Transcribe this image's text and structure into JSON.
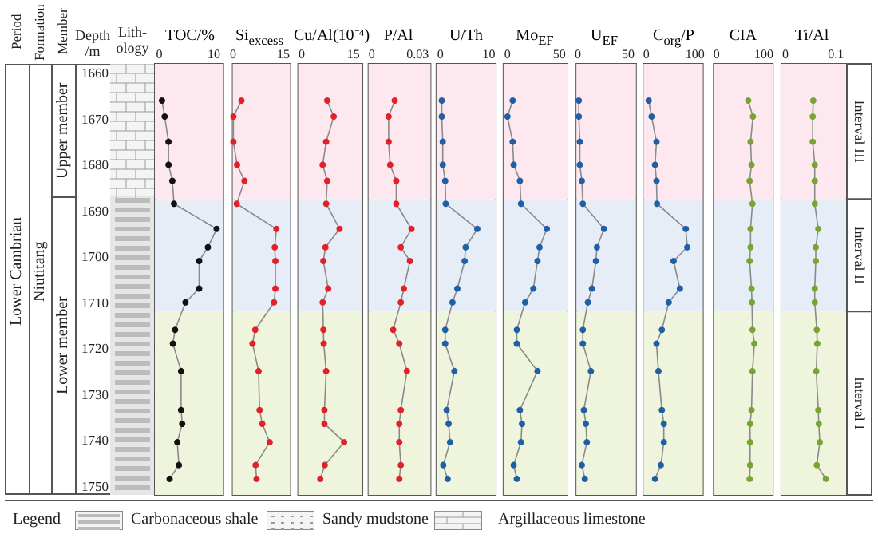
{
  "chart_data": [
    {
      "type": "line",
      "title": "TOC/%",
      "ylabel": "Depth /m",
      "marker": "circle",
      "line_style": "solid",
      "xlim": [
        -0.8,
        11.7
      ],
      "xticks": [
        0,
        10
      ],
      "ylim": [
        1752,
        1658
      ],
      "yticks": [
        1660,
        1670,
        1680,
        1690,
        1700,
        1710,
        1720,
        1730,
        1740,
        1750
      ],
      "series": [
        {
          "color": "#111111",
          "x": [
            0.5,
            1.0,
            1.7,
            1.7,
            2.4,
            2.7,
            10.5,
            8.9,
            7.3,
            7.3,
            4.8,
            2.9,
            2.5,
            4.0,
            4.0,
            4.2,
            3.3,
            3.6,
            1.9
          ],
          "values": [
            1666,
            1669.5,
            1675,
            1680,
            1683.5,
            1688.5,
            1694,
            1698,
            1701,
            1707,
            1710,
            1716,
            1719,
            1725,
            1733.5,
            1736.5,
            1740.5,
            1745.5,
            1748.5
          ]
        }
      ],
      "bands": [
        {
          "axis": "y",
          "from": 1658,
          "to": 1687.5,
          "color": "#fce8ee"
        },
        {
          "axis": "y",
          "from": 1687.5,
          "to": 1712,
          "color": "#e6edf7"
        },
        {
          "axis": "y",
          "from": 1712,
          "to": 1752,
          "color": "#eff4dc"
        }
      ],
      "annotations": [
        "Period",
        "Formation",
        "Member",
        "Lith-ology",
        "Lower Cambrian",
        "Niutitang",
        "Upper member",
        "Lower member",
        "Legend",
        "Carbonaceous shale",
        "Sandy mudstone",
        "Argillaceous limestone"
      ]
    },
    {
      "type": "line",
      "title": "Si$_{excess}$",
      "tick_labels": "x",
      "marker": "circle",
      "line_style": "solid",
      "xlim": [
        -0.1,
        17
      ],
      "xticks": [
        0,
        15
      ],
      "ylim": [
        1752,
        1658
      ],
      "series": [
        {
          "color": "#e3202a",
          "x": [
            2.5,
            0.1,
            0.1,
            1.2,
            3.4,
            1.1,
            12.9,
            12.4,
            12.6,
            12.6,
            12.2,
            6.6,
            5.8,
            7.6,
            7.9,
            8.7,
            10.9,
            6.7,
            7.0
          ],
          "values": [
            1666,
            1669.5,
            1675,
            1680,
            1683.5,
            1688.5,
            1694,
            1698,
            1701,
            1707,
            1710,
            1716,
            1719,
            1725,
            1733.5,
            1736.5,
            1740.5,
            1745.5,
            1748.5
          ]
        }
      ],
      "bands": [
        {
          "axis": "y",
          "from": 1658,
          "to": 1687.5,
          "color": "#fce8ee"
        },
        {
          "axis": "y",
          "from": 1687.5,
          "to": 1712,
          "color": "#e6edf7"
        },
        {
          "axis": "y",
          "from": 1712,
          "to": 1752,
          "color": "#eff4dc"
        }
      ]
    },
    {
      "type": "line",
      "title": "Cu/Al(10⁻⁴)",
      "tick_labels": "x",
      "marker": "circle",
      "line_style": "solid",
      "xlim": [
        -1,
        17.6
      ],
      "xticks": [
        0,
        15
      ],
      "ylim": [
        1752,
        1658
      ],
      "series": [
        {
          "color": "#e3202a",
          "x": [
            7.4,
            9.3,
            7.1,
            6.1,
            7.4,
            7.1,
            11.0,
            6.9,
            6.3,
            7.7,
            6.1,
            6.3,
            6.4,
            7.1,
            6.6,
            6.6,
            12.3,
            6.7,
            5.4
          ],
          "values": [
            1666,
            1669.5,
            1675,
            1680,
            1683.5,
            1688.5,
            1694,
            1698,
            1701,
            1707,
            1710,
            1716,
            1719,
            1725,
            1733.5,
            1736.5,
            1740.5,
            1745.5,
            1748.5
          ]
        }
      ],
      "bands": [
        {
          "axis": "y",
          "from": 1658,
          "to": 1687.5,
          "color": "#fce8ee"
        },
        {
          "axis": "y",
          "from": 1687.5,
          "to": 1712,
          "color": "#e6edf7"
        },
        {
          "axis": "y",
          "from": 1712,
          "to": 1752,
          "color": "#eff4dc"
        }
      ]
    },
    {
      "type": "line",
      "title": "P/Al",
      "tick_labels": "x",
      "marker": "circle",
      "line_style": "solid",
      "xlim": [
        -0.0022,
        0.0385
      ],
      "xticks": [
        0,
        0.03
      ],
      "ylim": [
        1752,
        1658
      ],
      "series": [
        {
          "color": "#e3202a",
          "x": [
            0.015,
            0.011,
            0.011,
            0.012,
            0.016,
            0.016,
            0.026,
            0.019,
            0.025,
            0.021,
            0.019,
            0.014,
            0.018,
            0.023,
            0.019,
            0.018,
            0.018,
            0.019,
            0.018
          ],
          "values": [
            1666,
            1669.5,
            1675,
            1680,
            1683.5,
            1688.5,
            1694,
            1698,
            1701,
            1707,
            1710,
            1716,
            1719,
            1725,
            1733.5,
            1736.5,
            1740.5,
            1745.5,
            1748.5
          ]
        }
      ],
      "bands": [
        {
          "axis": "y",
          "from": 1658,
          "to": 1687.5,
          "color": "#fce8ee"
        },
        {
          "axis": "y",
          "from": 1687.5,
          "to": 1712,
          "color": "#e6edf7"
        },
        {
          "axis": "y",
          "from": 1712,
          "to": 1752,
          "color": "#eff4dc"
        }
      ]
    },
    {
      "type": "line",
      "title": "U/Th",
      "tick_labels": "x",
      "marker": "circle",
      "line_style": "solid",
      "xlim": [
        -0.8,
        11.4
      ],
      "xticks": [
        0,
        10
      ],
      "ylim": [
        1752,
        1658
      ],
      "series": [
        {
          "color": "#1f5fa8",
          "x": [
            0.3,
            0.3,
            0.5,
            0.5,
            1.0,
            1.1,
            7.6,
            5.2,
            5.0,
            3.5,
            2.5,
            1.0,
            1.0,
            2.9,
            1.3,
            1.7,
            2.0,
            0.6,
            1.5
          ],
          "values": [
            1666,
            1669.5,
            1675,
            1680,
            1683.5,
            1688.5,
            1694,
            1698,
            1701,
            1707,
            1710,
            1716,
            1719,
            1725,
            1733.5,
            1736.5,
            1740.5,
            1745.5,
            1748.5
          ]
        }
      ],
      "bands": [
        {
          "axis": "y",
          "from": 1658,
          "to": 1687.5,
          "color": "#fce8ee"
        },
        {
          "axis": "y",
          "from": 1687.5,
          "to": 1712,
          "color": "#e6edf7"
        },
        {
          "axis": "y",
          "from": 1712,
          "to": 1752,
          "color": "#eff4dc"
        }
      ]
    },
    {
      "type": "line",
      "title": "Mo$_{EF}$",
      "tick_labels": "x",
      "marker": "circle",
      "line_style": "solid",
      "xlim": [
        -3.8,
        58
      ],
      "xticks": [
        0,
        50
      ],
      "ylim": [
        1752,
        1658
      ],
      "series": [
        {
          "color": "#1f5fa8",
          "x": [
            5,
            0,
            5,
            6,
            12,
            13,
            38,
            31,
            29,
            25,
            17,
            9,
            9,
            29,
            12,
            14,
            13,
            6,
            9
          ],
          "values": [
            1666,
            1669.5,
            1675,
            1680,
            1683.5,
            1688.5,
            1694,
            1698,
            1701,
            1707,
            1710,
            1716,
            1719,
            1725,
            1733.5,
            1736.5,
            1740.5,
            1745.5,
            1748.5
          ]
        }
      ],
      "bands": [
        {
          "axis": "y",
          "from": 1658,
          "to": 1687.5,
          "color": "#fce8ee"
        },
        {
          "axis": "y",
          "from": 1687.5,
          "to": 1712,
          "color": "#e6edf7"
        },
        {
          "axis": "y",
          "from": 1712,
          "to": 1752,
          "color": "#eff4dc"
        }
      ]
    },
    {
      "type": "line",
      "title": "U$_{EF}$",
      "tick_labels": "x",
      "marker": "circle",
      "line_style": "solid",
      "xlim": [
        -1.4,
        57.7
      ],
      "xticks": [
        0,
        50
      ],
      "ylim": [
        1752,
        1658
      ],
      "series": [
        {
          "color": "#1f5fa8",
          "x": [
            1,
            1,
            2,
            2,
            4,
            5,
            26,
            19,
            18,
            14,
            10,
            5,
            5,
            13,
            6,
            8,
            9,
            4,
            7
          ],
          "values": [
            1666,
            1669.5,
            1675,
            1680,
            1683.5,
            1688.5,
            1694,
            1698,
            1701,
            1707,
            1710,
            1716,
            1719,
            1725,
            1733.5,
            1736.5,
            1740.5,
            1745.5,
            1748.5
          ]
        }
      ],
      "bands": [
        {
          "axis": "y",
          "from": 1658,
          "to": 1687.5,
          "color": "#fce8ee"
        },
        {
          "axis": "y",
          "from": 1687.5,
          "to": 1712,
          "color": "#e6edf7"
        },
        {
          "axis": "y",
          "from": 1712,
          "to": 1752,
          "color": "#eff4dc"
        }
      ]
    },
    {
      "type": "line",
      "title": "C$_{org}$/P",
      "tick_labels": "x",
      "marker": "circle",
      "line_style": "solid",
      "xlim": [
        -5.6,
        116
      ],
      "xticks": [
        0,
        100
      ],
      "ylim": [
        1752,
        1658
      ],
      "series": [
        {
          "color": "#1f5fa8",
          "x": [
            5,
            11,
            21,
            18,
            21,
            22,
            81,
            84,
            56,
            69,
            46,
            32,
            21,
            25,
            32,
            36,
            36,
            30,
            18
          ],
          "values": [
            1666,
            1669.5,
            1675,
            1680,
            1683.5,
            1688.5,
            1694,
            1698,
            1701,
            1707,
            1710,
            1716,
            1719,
            1725,
            1733.5,
            1736.5,
            1740.5,
            1745.5,
            1748.5
          ]
        }
      ],
      "bands": [
        {
          "axis": "y",
          "from": 1658,
          "to": 1687.5,
          "color": "#fce8ee"
        },
        {
          "axis": "y",
          "from": 1687.5,
          "to": 1712,
          "color": "#e6edf7"
        },
        {
          "axis": "y",
          "from": 1712,
          "to": 1752,
          "color": "#eff4dc"
        }
      ]
    },
    {
      "type": "line",
      "title": "CIA",
      "tick_labels": "x",
      "marker": "circle",
      "line_style": "solid",
      "xlim": [
        -5.8,
        119
      ],
      "xticks": [
        0,
        100
      ],
      "ylim": [
        1752,
        1658
      ],
      "series": [
        {
          "color": "#76a531",
          "x": [
            67,
            77,
            72,
            74,
            70,
            76,
            72,
            72,
            70,
            74,
            75,
            76,
            80,
            76,
            74,
            71,
            71,
            71,
            70
          ],
          "values": [
            1666,
            1669.5,
            1675,
            1680,
            1683.5,
            1688.5,
            1694,
            1698,
            1701,
            1707,
            1710,
            1716,
            1719,
            1725,
            1733.5,
            1736.5,
            1740.5,
            1745.5,
            1748.5
          ]
        }
      ],
      "bands": [
        {
          "axis": "y",
          "from": 1658,
          "to": 1687.5,
          "color": "#fce8ee"
        },
        {
          "axis": "y",
          "from": 1687.5,
          "to": 1712,
          "color": "#e6edf7"
        },
        {
          "axis": "y",
          "from": 1712,
          "to": 1752,
          "color": "#eff4dc"
        }
      ]
    },
    {
      "type": "line",
      "title": "Ti/Al",
      "tick_labels": "x",
      "marker": "circle",
      "line_style": "solid",
      "xlim": [
        -0.008,
        0.12
      ],
      "xticks": [
        0,
        0.1
      ],
      "ylim": [
        1752,
        1658
      ],
      "series": [
        {
          "color": "#76a531",
          "x": [
            0.055,
            0.054,
            0.054,
            0.058,
            0.058,
            0.058,
            0.065,
            0.06,
            0.06,
            0.058,
            0.058,
            0.062,
            0.063,
            0.061,
            0.065,
            0.066,
            0.068,
            0.062,
            0.08
          ],
          "values": [
            1666,
            1669.5,
            1675,
            1680,
            1683.5,
            1688.5,
            1694,
            1698,
            1701,
            1707,
            1710,
            1716,
            1719,
            1725,
            1733.5,
            1736.5,
            1740.5,
            1745.5,
            1748.5
          ]
        }
      ],
      "bands": [
        {
          "axis": "y",
          "from": 1658,
          "to": 1687.5,
          "color": "#fce8ee",
          "label": "Interval III"
        },
        {
          "axis": "y",
          "from": 1687.5,
          "to": 1712,
          "color": "#e6edf7",
          "label": "Interval II"
        },
        {
          "axis": "y",
          "from": 1712,
          "to": 1752,
          "color": "#eff4dc",
          "label": "Interval I"
        }
      ]
    }
  ]
}
